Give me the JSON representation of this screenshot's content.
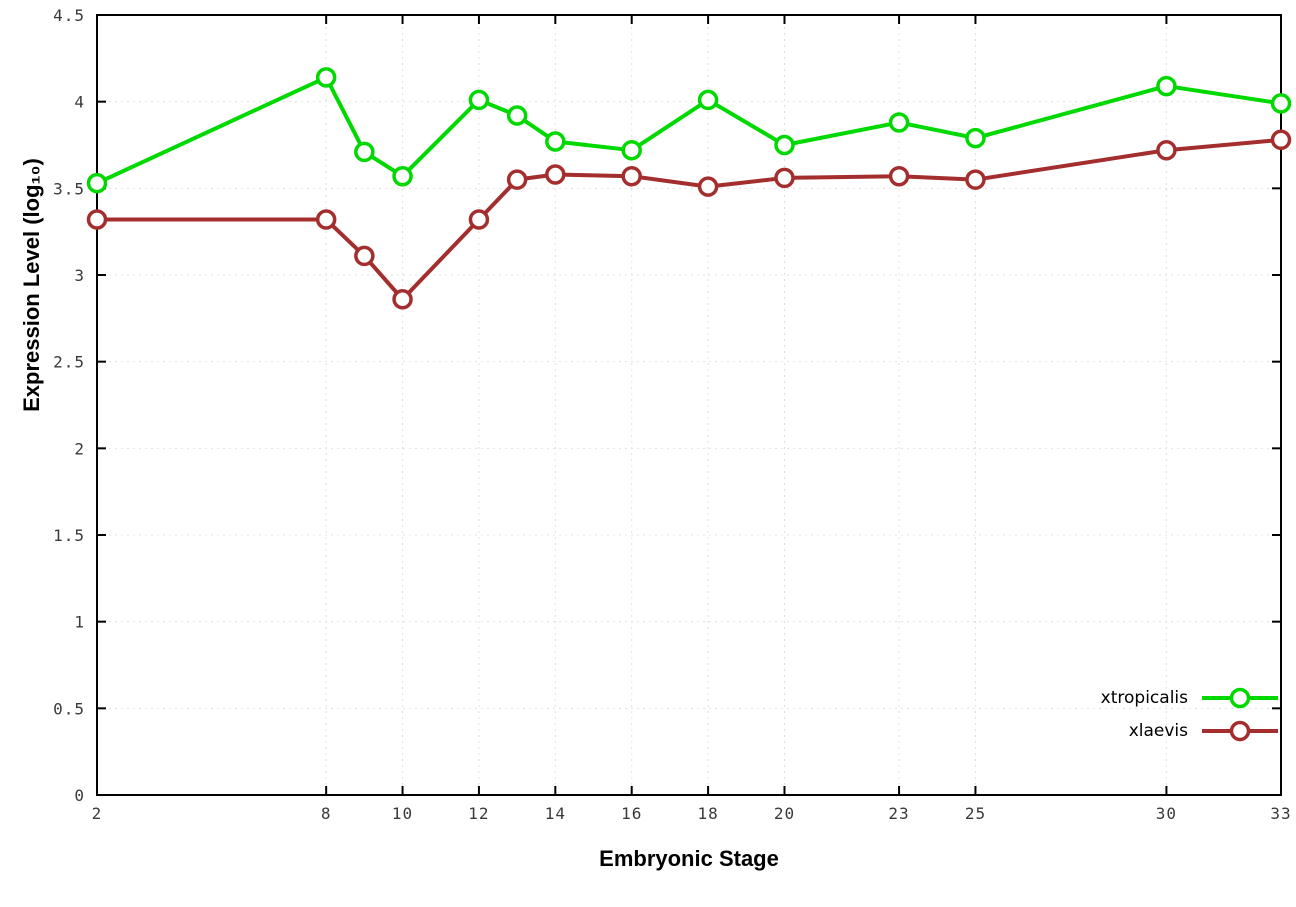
{
  "chart_data": {
    "type": "line",
    "x": [
      2,
      8,
      9,
      10,
      12,
      13,
      14,
      16,
      18,
      20,
      23,
      25,
      30,
      33
    ],
    "series": [
      {
        "name": "xtropicalis",
        "color": "#00d900",
        "values": [
          3.53,
          4.14,
          3.71,
          3.57,
          4.01,
          3.92,
          3.77,
          3.72,
          4.01,
          3.75,
          3.88,
          3.79,
          4.09,
          3.99
        ]
      },
      {
        "name": "xlaevis",
        "color": "#a42e2e",
        "values": [
          3.32,
          3.32,
          3.11,
          2.86,
          3.32,
          3.55,
          3.58,
          3.57,
          3.51,
          3.56,
          3.57,
          3.55,
          3.72,
          3.78
        ]
      }
    ],
    "title": "",
    "xlabel": "Embryonic Stage",
    "ylabel": "Expression Level (log₁₀)",
    "xlim": [
      2,
      33
    ],
    "ylim": [
      0,
      4.5
    ],
    "xticks": [
      2,
      8,
      10,
      12,
      14,
      16,
      18,
      20,
      23,
      25,
      30,
      33
    ],
    "yticks": [
      0,
      0.5,
      1,
      1.5,
      2,
      2.5,
      3,
      3.5,
      4,
      4.5
    ],
    "grid": true,
    "legend_position": "bottom-right",
    "marker": "open-circle",
    "axis_color": "#000000",
    "grid_color": "#e0e0e0"
  }
}
